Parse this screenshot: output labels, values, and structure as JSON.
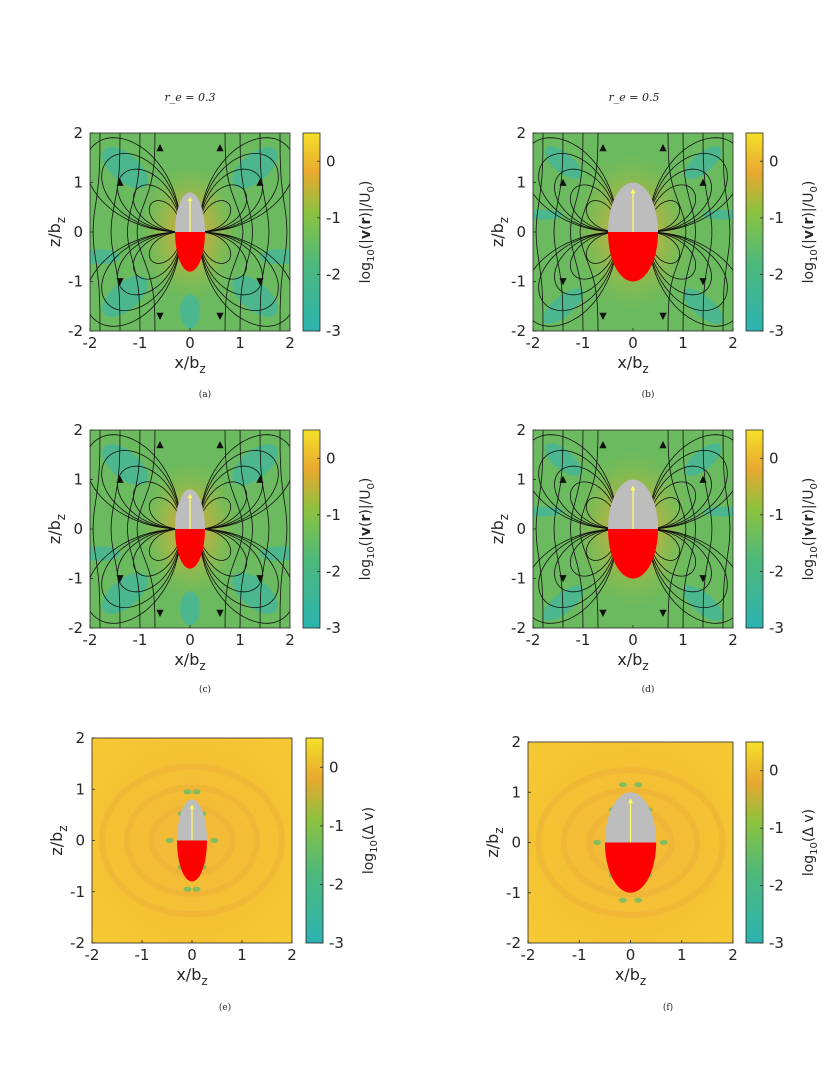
{
  "column_titles": [
    "r_e = 0.3",
    "r_e = 0.5"
  ],
  "colors": {
    "low": "#2bb3b0",
    "mid": "#6dbd5e",
    "high": "#f5d22a",
    "ellipse_top": "#bdbdbd",
    "ellipse_bottom": "#ff0000",
    "arrow": "#ffff66"
  },
  "chart_data": [
    {
      "type": "heatmap",
      "panel": "a",
      "caption": "(a)",
      "r_e": 0.3,
      "xlabel": "x/b",
      "xlabel_sub": "z",
      "ylabel": "z/b",
      "ylabel_sub": "z",
      "xlim": [
        -2,
        2
      ],
      "ylim": [
        -2,
        2
      ],
      "xticks": [
        "-2",
        "-1",
        "0",
        "1",
        "2"
      ],
      "yticks": [
        "-2",
        "-1",
        "0",
        "1",
        "2"
      ],
      "colorbar": {
        "label": "log10(|v(r)|/U0)",
        "label_parts": [
          "log",
          "10",
          "(|",
          "v",
          "(",
          "r",
          ")|/U",
          "0",
          ")"
        ],
        "min": -3,
        "max": 0.5,
        "ticks": [
          "0",
          "-1",
          "-2",
          "-3"
        ]
      },
      "field": "velocity",
      "streamlines": true,
      "ellipse": {
        "a": 0.3,
        "c": 0.8
      }
    },
    {
      "type": "heatmap",
      "panel": "b",
      "caption": "(b)",
      "r_e": 0.5,
      "xlabel": "x/b",
      "xlabel_sub": "z",
      "ylabel": "z/b",
      "ylabel_sub": "z",
      "xlim": [
        -2,
        2
      ],
      "ylim": [
        -2,
        2
      ],
      "xticks": [
        "-2",
        "-1",
        "0",
        "1",
        "2"
      ],
      "yticks": [
        "-2",
        "-1",
        "0",
        "1",
        "2"
      ],
      "colorbar": {
        "label": "log10(|v(r)|/U0)",
        "label_parts": [
          "log",
          "10",
          "(|",
          "v",
          "(",
          "r",
          ")|/U",
          "0",
          ")"
        ],
        "min": -3,
        "max": 0.5,
        "ticks": [
          "0",
          "-1",
          "-2",
          "-3"
        ]
      },
      "field": "velocity",
      "streamlines": true,
      "ellipse": {
        "a": 0.5,
        "c": 1.0
      }
    },
    {
      "type": "heatmap",
      "panel": "c",
      "caption": "(c)",
      "r_e": 0.3,
      "xlabel": "x/b",
      "xlabel_sub": "z",
      "ylabel": "z/b",
      "ylabel_sub": "z",
      "xlim": [
        -2,
        2
      ],
      "ylim": [
        -2,
        2
      ],
      "xticks": [
        "-2",
        "-1",
        "0",
        "1",
        "2"
      ],
      "yticks": [
        "-2",
        "-1",
        "0",
        "1",
        "2"
      ],
      "colorbar": {
        "label": "log10(|v(r)|/U0)",
        "label_parts": [
          "log",
          "10",
          "(|",
          "v",
          "(",
          "r",
          ")|/U",
          "0",
          ")"
        ],
        "min": -3,
        "max": 0.5,
        "ticks": [
          "0",
          "-1",
          "-2",
          "-3"
        ]
      },
      "field": "velocity",
      "streamlines": true,
      "ellipse": {
        "a": 0.3,
        "c": 0.8
      }
    },
    {
      "type": "heatmap",
      "panel": "d",
      "caption": "(d)",
      "r_e": 0.5,
      "xlabel": "x/b",
      "xlabel_sub": "z",
      "ylabel": "z/b",
      "ylabel_sub": "z",
      "xlim": [
        -2,
        2
      ],
      "ylim": [
        -2,
        2
      ],
      "xticks": [
        "-2",
        "-1",
        "0",
        "1",
        "2"
      ],
      "yticks": [
        "-2",
        "-1",
        "0",
        "1",
        "2"
      ],
      "colorbar": {
        "label": "log10(|v(r)|/U0)",
        "label_parts": [
          "log",
          "10",
          "(|",
          "v",
          "(",
          "r",
          ")|/U",
          "0",
          ")"
        ],
        "min": -3,
        "max": 0.5,
        "ticks": [
          "0",
          "-1",
          "-2",
          "-3"
        ]
      },
      "field": "velocity",
      "streamlines": true,
      "ellipse": {
        "a": 0.5,
        "c": 1.0
      }
    },
    {
      "type": "heatmap",
      "panel": "e",
      "caption": "(e)",
      "r_e": 0.3,
      "xlabel": "x/b",
      "xlabel_sub": "z",
      "ylabel": "z/b",
      "ylabel_sub": "z",
      "xlim": [
        -2,
        2
      ],
      "ylim": [
        -2,
        2
      ],
      "xticks": [
        "-2",
        "-1",
        "0",
        "1",
        "2"
      ],
      "yticks": [
        "-2",
        "-1",
        "0",
        "1",
        "2"
      ],
      "colorbar": {
        "label": "log10(Δ v)",
        "label_parts": [
          "log",
          "10",
          "(Δ v)"
        ],
        "min": -3,
        "max": 0.5,
        "ticks": [
          "0",
          "-1",
          "-2",
          "-3"
        ]
      },
      "field": "difference",
      "streamlines": false,
      "ellipse": {
        "a": 0.3,
        "c": 0.8
      }
    },
    {
      "type": "heatmap",
      "panel": "f",
      "caption": "(f)",
      "r_e": 0.5,
      "xlabel": "x/b",
      "xlabel_sub": "z",
      "ylabel": "z/b",
      "ylabel_sub": "z",
      "xlim": [
        -2,
        2
      ],
      "ylim": [
        -2,
        2
      ],
      "xticks": [
        "-2",
        "-1",
        "0",
        "1",
        "2"
      ],
      "yticks": [
        "-2",
        "-1",
        "0",
        "1",
        "2"
      ],
      "colorbar": {
        "label": "log10(Δ v)",
        "label_parts": [
          "log",
          "10",
          "(Δ v)"
        ],
        "min": -3,
        "max": 0.5,
        "ticks": [
          "0",
          "-1",
          "-2",
          "-3"
        ]
      },
      "field": "difference",
      "streamlines": false,
      "ellipse": {
        "a": 0.5,
        "c": 1.0
      }
    }
  ]
}
